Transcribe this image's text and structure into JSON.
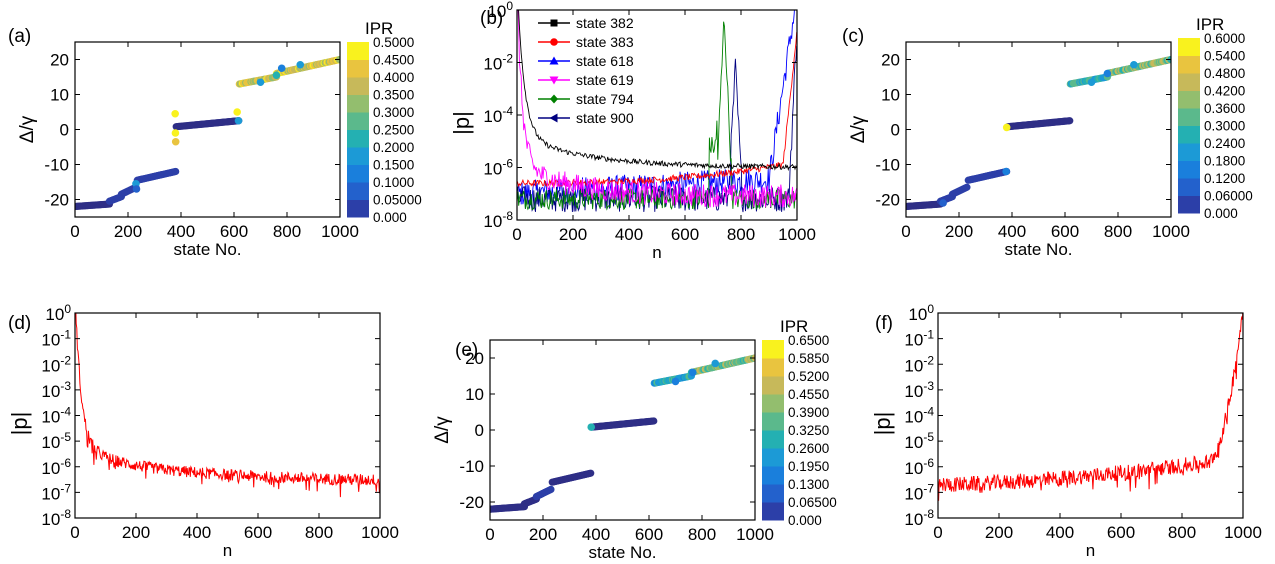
{
  "figure": {
    "panel_labels": [
      "(a)",
      "(b)",
      "(c)",
      "(d)",
      "(e)",
      "(f)"
    ]
  },
  "chart_data": [
    {
      "panel": "(a)",
      "type": "scatter",
      "xlabel": "state No.",
      "ylabel": "Δ/γ",
      "xlim": [
        0,
        1000
      ],
      "ylim": [
        -25,
        25
      ],
      "xticks": [
        0,
        200,
        400,
        600,
        800,
        1000
      ],
      "yticks": [
        -20,
        -10,
        0,
        10,
        20
      ],
      "colorbar": {
        "title": "IPR",
        "labels": [
          "0.000",
          "0.05000",
          "0.1000",
          "0.1500",
          "0.2000",
          "0.2500",
          "0.3000",
          "0.3500",
          "0.4000",
          "0.4500",
          "0.5000"
        ],
        "max": 0.5
      },
      "segments": [
        {
          "x": [
            0,
            130
          ],
          "y": [
            -22,
            -21.3
          ],
          "ipr": 0.02
        },
        {
          "x": [
            130,
            175
          ],
          "y": [
            -20.5,
            -19.2
          ],
          "ipr": 0.03
        },
        {
          "x": [
            175,
            230
          ],
          "y": [
            -18.5,
            -16.5
          ],
          "ipr": 0.04
        },
        {
          "x": [
            235,
            380
          ],
          "y": [
            -14.5,
            -12
          ],
          "ipr": 0.03
        },
        {
          "x": [
            382,
            618
          ],
          "y": [
            0.8,
            2.5
          ],
          "ipr": 0.02
        },
        {
          "x": [
            620,
            760
          ],
          "y": [
            13,
            15
          ],
          "ipr": 0.4
        },
        {
          "x": [
            760,
            1000
          ],
          "y": [
            16,
            20
          ],
          "ipr": 0.42
        }
      ],
      "points": [
        {
          "x": 378,
          "y": 4.5,
          "ipr": 0.5
        },
        {
          "x": 379,
          "y": -1.0,
          "ipr": 0.48
        },
        {
          "x": 380,
          "y": -3.5,
          "ipr": 0.46
        },
        {
          "x": 612,
          "y": 5.0,
          "ipr": 0.5
        },
        {
          "x": 617,
          "y": 2.5,
          "ipr": 0.2
        },
        {
          "x": 230,
          "y": -15.5,
          "ipr": 0.2
        },
        {
          "x": 232,
          "y": -17,
          "ipr": 0.1
        },
        {
          "x": 700,
          "y": 13.5,
          "ipr": 0.22
        },
        {
          "x": 760,
          "y": 15.5,
          "ipr": 0.24
        },
        {
          "x": 780,
          "y": 17.5,
          "ipr": 0.15
        },
        {
          "x": 850,
          "y": 18.5,
          "ipr": 0.2
        }
      ]
    },
    {
      "panel": "(b)",
      "type": "line",
      "xlabel": "n",
      "ylabel": "|p|",
      "xlim": [
        0,
        1000
      ],
      "ylim_log10": [
        -8,
        0
      ],
      "xticks": [
        0,
        200,
        400,
        600,
        800,
        1000
      ],
      "ytick_labels": [
        {
          "b": "10",
          "e": "0"
        },
        {
          "b": "10",
          "e": "-2"
        },
        {
          "b": "10",
          "e": "-4"
        },
        {
          "b": "10",
          "e": "-6"
        },
        {
          "b": "10",
          "e": "-8"
        }
      ],
      "legend": "top-left",
      "series": [
        {
          "name": "state 382",
          "color": "#000000",
          "marker": "square"
        },
        {
          "name": "state 383",
          "color": "#ff0000",
          "marker": "circle"
        },
        {
          "name": "state 618",
          "color": "#0000ff",
          "marker": "triangle-up"
        },
        {
          "name": "state 619",
          "color": "#ff00ff",
          "marker": "triangle-down"
        },
        {
          "name": "state 794",
          "color": "#008000",
          "marker": "diamond"
        },
        {
          "name": "state 900",
          "color": "#000080",
          "marker": "triangle-left"
        }
      ]
    },
    {
      "panel": "(c)",
      "type": "scatter",
      "xlabel": "state No.",
      "ylabel": "Δ/γ",
      "xlim": [
        0,
        1000
      ],
      "ylim": [
        -25,
        25
      ],
      "xticks": [
        0,
        200,
        400,
        600,
        800,
        1000
      ],
      "yticks": [
        -20,
        -10,
        0,
        10,
        20
      ],
      "colorbar": {
        "title": "IPR",
        "labels": [
          "0.000",
          "0.06000",
          "0.1200",
          "0.1800",
          "0.2400",
          "0.3000",
          "0.3600",
          "0.4200",
          "0.4800",
          "0.5400",
          "0.6000"
        ],
        "max": 0.6
      },
      "segments": [
        {
          "x": [
            0,
            130
          ],
          "y": [
            -22,
            -21.3
          ],
          "ipr": 0.02
        },
        {
          "x": [
            130,
            175
          ],
          "y": [
            -20.5,
            -19.2
          ],
          "ipr": 0.03
        },
        {
          "x": [
            175,
            230
          ],
          "y": [
            -18.5,
            -16.5
          ],
          "ipr": 0.04
        },
        {
          "x": [
            235,
            380
          ],
          "y": [
            -14.5,
            -12
          ],
          "ipr": 0.03
        },
        {
          "x": [
            385,
            618
          ],
          "y": [
            0.8,
            2.5
          ],
          "ipr": 0.02
        },
        {
          "x": [
            620,
            760
          ],
          "y": [
            13,
            15
          ],
          "ipr": 0.3
        },
        {
          "x": [
            760,
            1000
          ],
          "y": [
            16,
            20
          ],
          "ipr": 0.4
        }
      ],
      "points": [
        {
          "x": 380,
          "y": 0.6,
          "ipr": 0.6
        },
        {
          "x": 378,
          "y": -12,
          "ipr": 0.15
        },
        {
          "x": 140,
          "y": -21,
          "ipr": 0.12
        },
        {
          "x": 700,
          "y": 13.5,
          "ipr": 0.22
        },
        {
          "x": 760,
          "y": 16,
          "ipr": 0.2
        },
        {
          "x": 860,
          "y": 18.5,
          "ipr": 0.24
        }
      ]
    },
    {
      "panel": "(d)",
      "type": "line",
      "xlabel": "n",
      "ylabel": "|p|",
      "xlim": [
        0,
        1000
      ],
      "ylim_log10": [
        -8,
        0
      ],
      "xticks": [
        0,
        200,
        400,
        600,
        800,
        1000
      ],
      "ytick_labels": [
        {
          "b": "10",
          "e": "0"
        },
        {
          "b": "10",
          "e": "-1"
        },
        {
          "b": "10",
          "e": "-2"
        },
        {
          "b": "10",
          "e": "-3"
        },
        {
          "b": "10",
          "e": "-4"
        },
        {
          "b": "10",
          "e": "-5"
        },
        {
          "b": "10",
          "e": "-6"
        },
        {
          "b": "10",
          "e": "-7"
        },
        {
          "b": "10",
          "e": "-8"
        }
      ],
      "series": [
        {
          "color": "#ff0000",
          "shape": "decay-from-left",
          "start_log10": -0.3,
          "end_log10": -6.4
        }
      ]
    },
    {
      "panel": "(e)",
      "type": "scatter",
      "xlabel": "state No.",
      "ylabel": "Δ/γ",
      "xlim": [
        0,
        1000
      ],
      "ylim": [
        -25,
        25
      ],
      "xticks": [
        0,
        200,
        400,
        600,
        800,
        1000
      ],
      "yticks": [
        -20,
        -10,
        0,
        10,
        20
      ],
      "colorbar": {
        "title": "IPR",
        "labels": [
          "0.000",
          "0.06500",
          "0.1300",
          "0.1950",
          "0.2600",
          "0.3250",
          "0.3900",
          "0.4550",
          "0.5200",
          "0.5850",
          "0.6500"
        ],
        "max": 0.65
      },
      "segments": [
        {
          "x": [
            0,
            130
          ],
          "y": [
            -22,
            -21.3
          ],
          "ipr": 0.02
        },
        {
          "x": [
            130,
            175
          ],
          "y": [
            -20.5,
            -19.2
          ],
          "ipr": 0.03
        },
        {
          "x": [
            175,
            230
          ],
          "y": [
            -18.5,
            -16.5
          ],
          "ipr": 0.04
        },
        {
          "x": [
            235,
            380
          ],
          "y": [
            -14.5,
            -12
          ],
          "ipr": 0.03
        },
        {
          "x": [
            385,
            618
          ],
          "y": [
            0.8,
            2.5
          ],
          "ipr": 0.02
        },
        {
          "x": [
            620,
            760
          ],
          "y": [
            13,
            15
          ],
          "ipr": 0.3
        },
        {
          "x": [
            760,
            1000
          ],
          "y": [
            16,
            20
          ],
          "ipr": 0.42
        }
      ],
      "points": [
        {
          "x": 382,
          "y": 0.8,
          "ipr": 0.3
        },
        {
          "x": 700,
          "y": 13.5,
          "ipr": 0.22
        },
        {
          "x": 765,
          "y": 16,
          "ipr": 0.2
        },
        {
          "x": 850,
          "y": 18.5,
          "ipr": 0.24
        }
      ]
    },
    {
      "panel": "(f)",
      "type": "line",
      "xlabel": "n",
      "ylabel": "|p|",
      "xlim": [
        0,
        1000
      ],
      "ylim_log10": [
        -8,
        0
      ],
      "xticks": [
        0,
        200,
        400,
        600,
        800,
        1000
      ],
      "ytick_labels": [
        {
          "b": "10",
          "e": "0"
        },
        {
          "b": "10",
          "e": "-1"
        },
        {
          "b": "10",
          "e": "-2"
        },
        {
          "b": "10",
          "e": "-3"
        },
        {
          "b": "10",
          "e": "-4"
        },
        {
          "b": "10",
          "e": "-5"
        },
        {
          "b": "10",
          "e": "-6"
        },
        {
          "b": "10",
          "e": "-7"
        },
        {
          "b": "10",
          "e": "-8"
        }
      ],
      "series": [
        {
          "color": "#ff0000",
          "shape": "rise-to-right",
          "start_log10": -6.6,
          "end_log10": -0.2
        }
      ]
    }
  ]
}
